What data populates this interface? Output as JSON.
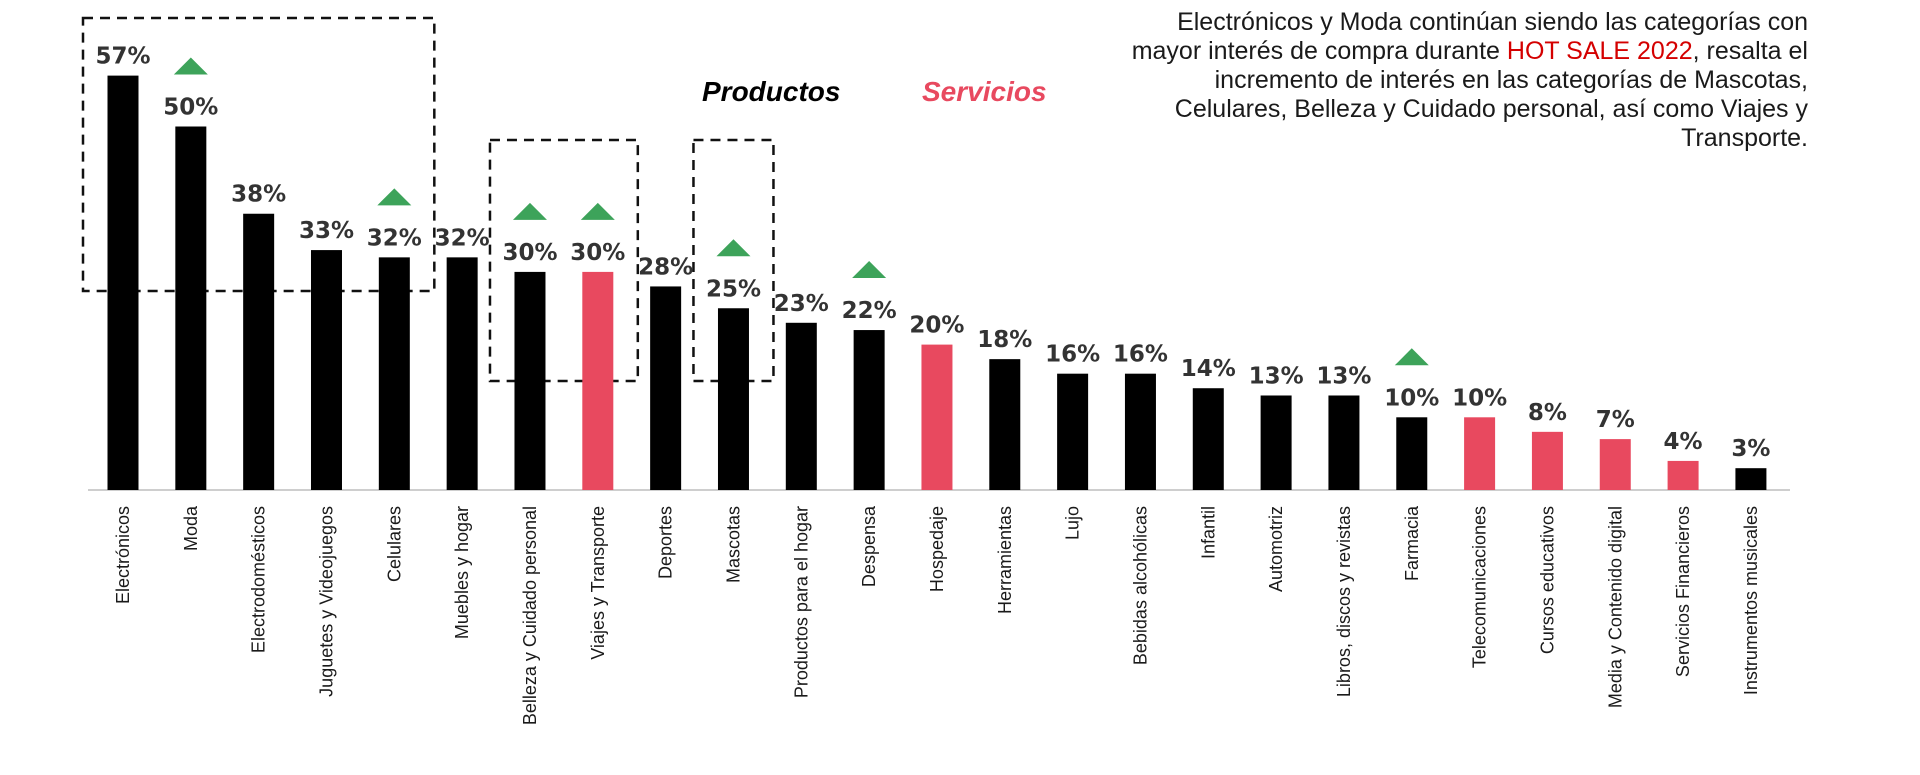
{
  "note": {
    "text_before": "Electrónicos y Moda continúan siendo las categorías con mayor interés de compra durante ",
    "highlight": "HOT SALE 2022",
    "text_after": ", resalta el incremento de interés en las categorías de Mascotas, Celulares, Belleza y Cuidado personal, así como Viajes y Transporte."
  },
  "legend": {
    "productos": "Productos",
    "servicios": "Servicios"
  },
  "colors": {
    "producto": "#000000",
    "servicio": "#e8495f",
    "arrow": "#3da35a",
    "highlight": "#d40000"
  },
  "chart_data": {
    "type": "bar",
    "title": "",
    "xlabel": "",
    "ylabel": "",
    "ylim": [
      0,
      60
    ],
    "categories": [
      "Electrónicos",
      "Moda",
      "Electrodomésticos",
      "Juguetes y Videojuegos",
      "Celulares",
      "Muebles y hogar",
      "Belleza y Cuidado personal",
      "Viajes y Transporte",
      "Deportes",
      "Mascotas",
      "Productos para el hogar",
      "Despensa",
      "Hospedaje",
      "Herramientas",
      "Lujo",
      "Bebidas alcohólicas",
      "Infantil",
      "Automotriz",
      "Libros, discos y revistas",
      "Farmacia",
      "Telecomunicaciones",
      "Cursos educativos",
      "Media y Contenido digital",
      "Servicios Financieros",
      "Instrumentos musicales"
    ],
    "values": [
      57,
      50,
      38,
      33,
      32,
      32,
      30,
      30,
      28,
      25,
      23,
      22,
      20,
      18,
      16,
      16,
      14,
      13,
      13,
      10,
      10,
      8,
      7,
      4,
      3
    ],
    "labels": [
      "57%",
      "50%",
      "38%",
      "33%",
      "32%",
      "32%",
      "30%",
      "30%",
      "28%",
      "25%",
      "23%",
      "22%",
      "20%",
      "18%",
      "16%",
      "16%",
      "14%",
      "13%",
      "13%",
      "10%",
      "10%",
      "8%",
      "7%",
      "4%",
      "3%"
    ],
    "types": [
      "producto",
      "producto",
      "producto",
      "producto",
      "producto",
      "producto",
      "producto",
      "servicio",
      "producto",
      "producto",
      "producto",
      "producto",
      "servicio",
      "producto",
      "producto",
      "producto",
      "producto",
      "producto",
      "producto",
      "producto",
      "servicio",
      "servicio",
      "servicio",
      "servicio",
      "producto"
    ],
    "increase": [
      "Moda",
      "Celulares",
      "Belleza y Cuidado personal",
      "Viajes y Transporte",
      "Mascotas",
      "Despensa",
      "Farmacia"
    ],
    "highlight_groups": [
      [
        "Electrónicos",
        "Moda",
        "Electrodomésticos",
        "Juguetes y Videojuegos",
        "Celulares"
      ],
      [
        "Belleza y Cuidado personal",
        "Viajes y Transporte"
      ],
      [
        "Mascotas"
      ]
    ]
  }
}
